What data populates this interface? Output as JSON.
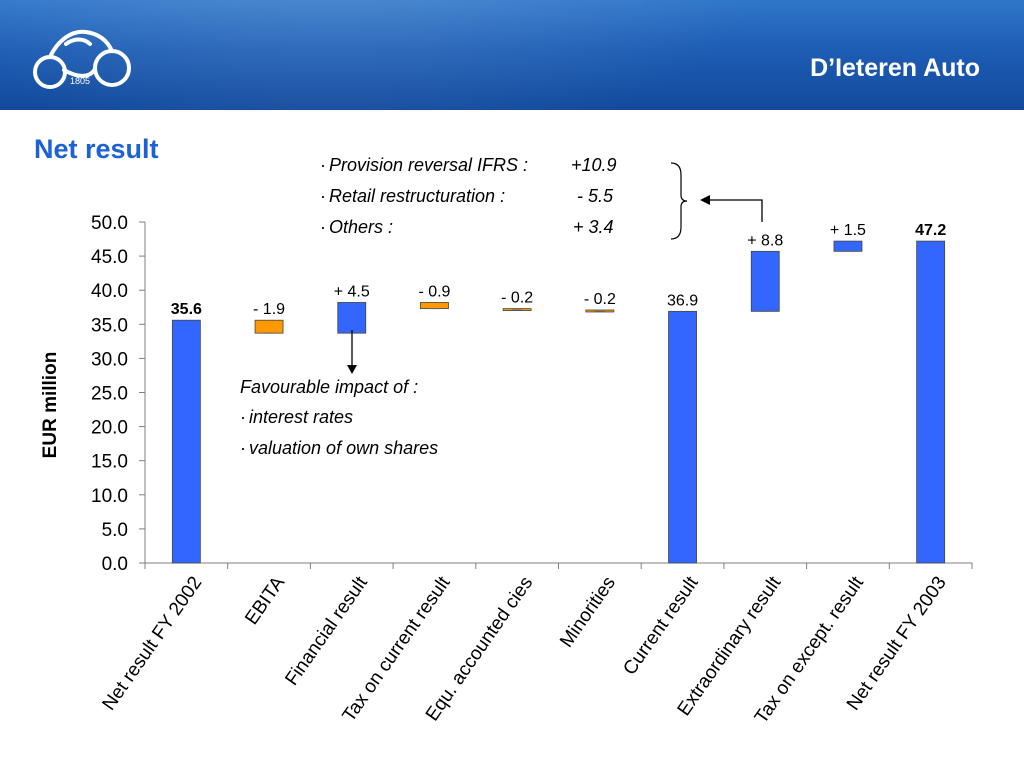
{
  "header": {
    "brand": "D’Ieteren Auto",
    "logo_year": "1805",
    "background_color": "#1d5db4"
  },
  "page_title": "Net result",
  "annotations": {
    "provision_items": [
      {
        "label": "Provision reversal IFRS :",
        "value": "+10.9"
      },
      {
        "label": "Retail restructuration :",
        "value": "- 5.5"
      },
      {
        "label": "Others :",
        "value": "+ 3.4"
      }
    ],
    "favourable": {
      "heading": "Favourable impact of :",
      "items": [
        "interest rates",
        "valuation of own shares"
      ]
    }
  },
  "chart_data": {
    "type": "bar",
    "subtype": "waterfall",
    "ylabel": "EUR million",
    "ylim": [
      0,
      50
    ],
    "y_ticks": [
      "50.0",
      "45.0",
      "40.0",
      "35.0",
      "30.0",
      "25.0",
      "20.0",
      "15.0",
      "10.0",
      "5.0",
      "0.0"
    ],
    "grid": false,
    "colors": {
      "total": "#3366ff",
      "positive": "#3366ff",
      "negative": "#ff9900"
    },
    "categories": [
      "Net result FY 2002",
      "EBITA",
      "Financial result",
      "Tax on current result",
      "Equ. accounted cies",
      "Minorities",
      "Current result",
      "Extraordinary result",
      "Tax on except. result",
      "Net result FY 2003"
    ],
    "bars": [
      {
        "kind": "total",
        "base": 0,
        "top": 35.6,
        "label": "35.6",
        "bold": true
      },
      {
        "kind": "negative",
        "base": 33.7,
        "top": 35.6,
        "label": "- 1.9",
        "bold": false
      },
      {
        "kind": "positive",
        "base": 33.7,
        "top": 38.2,
        "label": "+ 4.5",
        "bold": false
      },
      {
        "kind": "negative",
        "base": 37.3,
        "top": 38.2,
        "label": "- 0.9",
        "bold": false
      },
      {
        "kind": "negative",
        "base": 37.1,
        "top": 37.3,
        "label": "- 0.2",
        "bold": false
      },
      {
        "kind": "negative",
        "base": 36.9,
        "top": 37.1,
        "label": "- 0.2",
        "bold": false
      },
      {
        "kind": "total",
        "base": 0,
        "top": 36.9,
        "label": "36.9",
        "bold": false
      },
      {
        "kind": "positive",
        "base": 36.9,
        "top": 45.7,
        "label": "+ 8.8",
        "bold": false
      },
      {
        "kind": "positive",
        "base": 45.7,
        "top": 47.2,
        "label": "+ 1.5",
        "bold": false
      },
      {
        "kind": "total",
        "base": 0,
        "top": 47.2,
        "label": "47.2",
        "bold": true
      }
    ]
  }
}
